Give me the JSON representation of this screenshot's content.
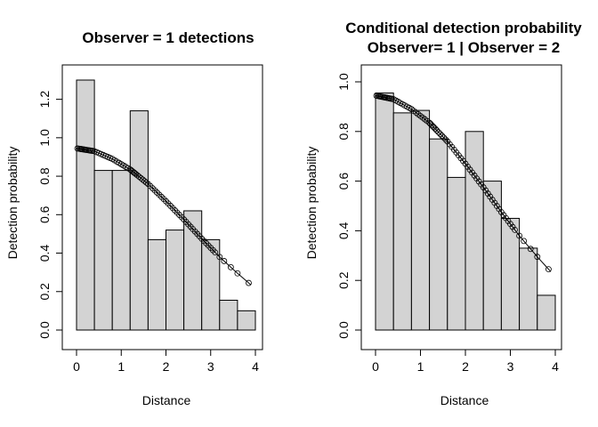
{
  "chart_data": [
    {
      "type": "bar",
      "title_lines": [
        "Observer =  1  detections"
      ],
      "xlabel": "Distance",
      "ylabel": "Detection probability",
      "xlim": [
        0,
        4
      ],
      "ylim": [
        0,
        1.3
      ],
      "xticks": [
        0,
        1,
        2,
        3,
        4
      ],
      "yticks": [
        0.0,
        0.2,
        0.4,
        0.6,
        0.8,
        1.0,
        1.2
      ],
      "ytick_labels": [
        "0.0",
        "0.2",
        "0.4",
        "0.6",
        "0.8",
        "1.0",
        "1.2"
      ],
      "bar_width": 0.4,
      "bar_starts": [
        0,
        0.4,
        0.8,
        1.2,
        1.6,
        2.0,
        2.4,
        2.8,
        3.2,
        3.6
      ],
      "values": [
        1.3,
        0.83,
        0.83,
        1.14,
        0.47,
        0.52,
        0.62,
        0.47,
        0.155,
        0.1
      ],
      "fitted_curve": {
        "x": [
          0,
          0.4,
          0.8,
          1.2,
          1.6,
          2.0,
          2.4,
          2.8,
          3.2,
          3.6,
          3.9
        ],
        "y": [
          0.945,
          0.93,
          0.89,
          0.835,
          0.76,
          0.67,
          0.575,
          0.475,
          0.38,
          0.295,
          0.235
        ]
      },
      "observation_x": [
        0.02,
        0.05,
        0.08,
        0.1,
        0.12,
        0.15,
        0.18,
        0.2,
        0.22,
        0.25,
        0.28,
        0.3,
        0.33,
        0.36,
        0.4,
        0.45,
        0.5,
        0.55,
        0.6,
        0.65,
        0.7,
        0.75,
        0.8,
        0.85,
        0.9,
        0.95,
        1.0,
        1.05,
        1.1,
        1.15,
        1.2,
        1.22,
        1.25,
        1.28,
        1.3,
        1.33,
        1.36,
        1.4,
        1.44,
        1.48,
        1.52,
        1.56,
        1.6,
        1.65,
        1.7,
        1.75,
        1.8,
        1.85,
        1.9,
        1.95,
        2.0,
        2.05,
        2.1,
        2.15,
        2.2,
        2.25,
        2.3,
        2.35,
        2.4,
        2.45,
        2.5,
        2.55,
        2.6,
        2.65,
        2.7,
        2.75,
        2.8,
        2.85,
        2.9,
        2.95,
        3.0,
        3.05,
        3.1,
        3.2,
        3.3,
        3.45,
        3.6,
        3.85
      ]
    },
    {
      "type": "bar",
      "title_lines": [
        "Conditional detection probability",
        "Observer= 1  | Observer =  2"
      ],
      "xlabel": "Distance",
      "ylabel": "Detection probability",
      "xlim": [
        0,
        4
      ],
      "ylim": [
        0,
        1.0
      ],
      "xticks": [
        0,
        1,
        2,
        3,
        4
      ],
      "yticks": [
        0.0,
        0.2,
        0.4,
        0.6,
        0.8,
        1.0
      ],
      "ytick_labels": [
        "0.0",
        "0.2",
        "0.4",
        "0.6",
        "0.8",
        "1.0"
      ],
      "bar_width": 0.4,
      "bar_starts": [
        0,
        0.4,
        0.8,
        1.2,
        1.6,
        2.0,
        2.4,
        2.8,
        3.2,
        3.6
      ],
      "values": [
        0.955,
        0.875,
        0.885,
        0.77,
        0.615,
        0.8,
        0.6,
        0.45,
        0.33,
        0.14
      ],
      "fitted_curve": {
        "x": [
          0,
          0.4,
          0.8,
          1.2,
          1.6,
          2.0,
          2.4,
          2.8,
          3.2,
          3.6,
          3.9
        ],
        "y": [
          0.945,
          0.93,
          0.89,
          0.835,
          0.76,
          0.67,
          0.575,
          0.475,
          0.38,
          0.295,
          0.235
        ]
      },
      "observation_x": [
        0.02,
        0.05,
        0.08,
        0.1,
        0.12,
        0.15,
        0.18,
        0.2,
        0.22,
        0.25,
        0.28,
        0.3,
        0.33,
        0.36,
        0.4,
        0.45,
        0.5,
        0.55,
        0.6,
        0.65,
        0.7,
        0.75,
        0.8,
        0.85,
        0.9,
        0.95,
        1.0,
        1.05,
        1.1,
        1.15,
        1.2,
        1.22,
        1.25,
        1.28,
        1.3,
        1.33,
        1.36,
        1.4,
        1.44,
        1.48,
        1.52,
        1.56,
        1.6,
        1.65,
        1.7,
        1.75,
        1.8,
        1.85,
        1.9,
        1.95,
        2.0,
        2.05,
        2.1,
        2.15,
        2.2,
        2.25,
        2.3,
        2.35,
        2.4,
        2.45,
        2.5,
        2.55,
        2.6,
        2.65,
        2.7,
        2.75,
        2.8,
        2.85,
        2.9,
        2.95,
        3.0,
        3.05,
        3.1,
        3.2,
        3.3,
        3.45,
        3.6,
        3.85
      ]
    }
  ],
  "colors": {
    "bar_fill": "#d3d3d3",
    "bar_stroke": "#000000",
    "axis": "#000000",
    "background": "#ffffff"
  }
}
